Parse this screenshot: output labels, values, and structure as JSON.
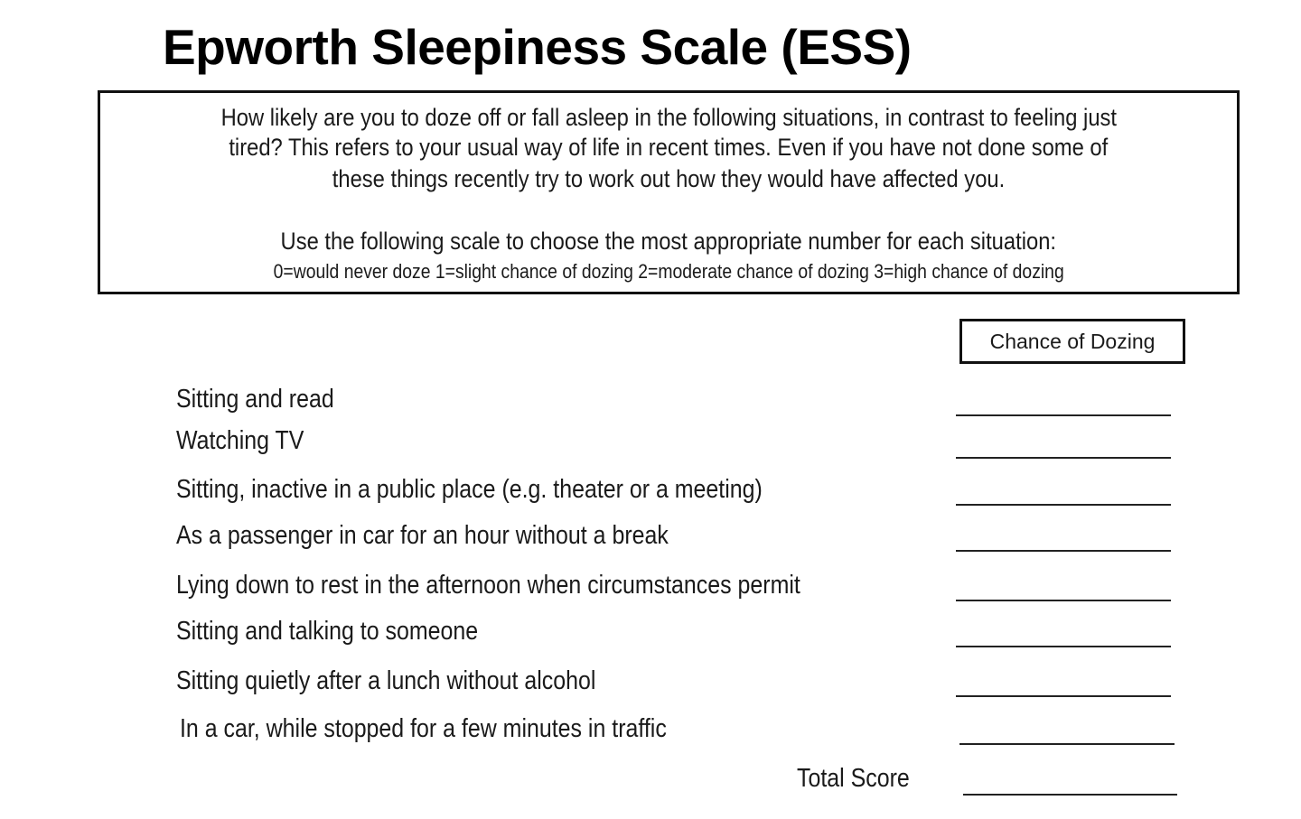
{
  "title": "Epworth Sleepiness Scale (ESS)",
  "instructions": {
    "lines": [
      "How likely are you to doze off or fall asleep in the following situations, in contrast to feeling just",
      "tired?  This refers to your usual way of life in recent times.  Even if you have not done some of",
      "these things recently try to work out how they would have affected you."
    ],
    "scale_prompt": "Use the following scale to choose the most appropriate number for each situation:",
    "scale": "0=would never doze  1=slight chance of dozing   2=moderate chance of dozing   3=high chance of dozing"
  },
  "column_header": "Chance of Dozing",
  "situations": [
    "Sitting and read",
    "Watching TV",
    "Sitting, inactive in a public place (e.g. theater or a meeting)",
    "As a passenger in car for an hour without a break",
    "Lying down to rest in the afternoon when circumstances permit",
    "Sitting and talking to someone",
    "Sitting quietly after a lunch without alcohol",
    "In a car, while stopped for a few minutes in traffic"
  ],
  "total_label": "Total Score"
}
